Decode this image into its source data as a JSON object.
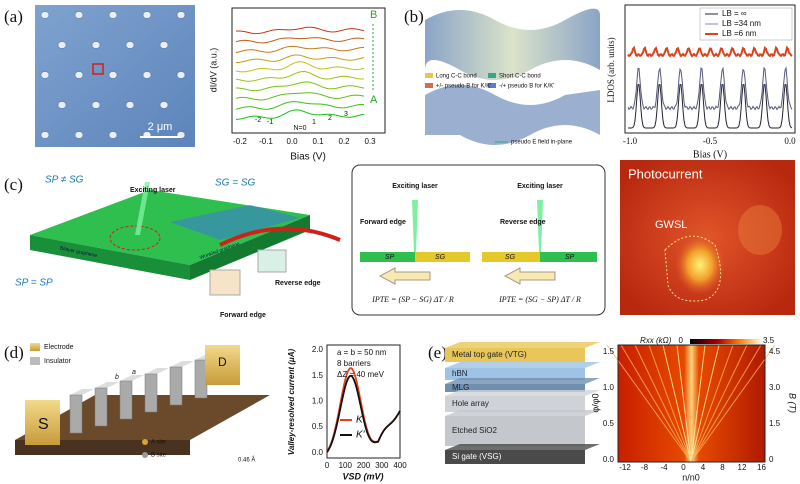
{
  "panels": {
    "a": {
      "label": "(a)",
      "scale_bar": "2 μm",
      "plot": {
        "y_label": "dI/dV (a.u.)",
        "x_label": "Bias (V)",
        "x_ticks": [
          "-0.2",
          "-0.1",
          "0.0",
          "0.1",
          "0.2",
          "0.3"
        ],
        "top_label": "B",
        "bottom_label": "A",
        "peak_labels": [
          "-2",
          "-1",
          "N=0",
          "1",
          "2",
          "3"
        ]
      }
    },
    "b": {
      "label": "(b)",
      "schematic": {
        "legend": [
          "Long C-C bond",
          "Short C-C bond",
          "+/- pseudo B for K/K'",
          "-/+ pseudo B for K/K'"
        ],
        "field_note": "pseudo E field in-plane"
      },
      "plot": {
        "y_label": "LDOS (arb. units)",
        "x_label": "Bias (V)",
        "x_ticks": [
          "-1.0",
          "-0.5",
          "0.0"
        ],
        "legend": [
          "LB = ∞",
          "LB =34 nm",
          "LB =6 nm"
        ]
      }
    },
    "c": {
      "label": "(c)",
      "schematic": {
        "laser": "Exciting laser",
        "unequal": "SP ≠ SG",
        "top_right": "SG = SG",
        "bottom_left": "SP = SP",
        "reverse": "Reverse edge",
        "forward": "Forward edge",
        "sample_left": "Bilayer graphene",
        "sample_right": "Wrinkled graphene"
      },
      "box": {
        "left_laser": "Exciting laser",
        "left_edge": "Forward edge",
        "left_sp": "SP",
        "left_sg": "SG",
        "left_formula": "IPTE = (SP − SG) ΔT / R",
        "right_laser": "Exciting laser",
        "right_edge": "Reverse edge",
        "right_sg": "SG",
        "right_sp": "SP",
        "right_formula": "IPTE = (SG − SP) ΔT / R"
      },
      "image": {
        "title": "Photocurrent",
        "region": "GWSL"
      }
    },
    "d": {
      "label": "(d)",
      "schematic": {
        "electrode": "Electrode",
        "insulator": "Insulator",
        "source": "S",
        "drain": "D",
        "a": "a",
        "b": "b",
        "a_site": "A site",
        "b_site": "B site",
        "height": "0.46 Å"
      },
      "plot": {
        "notes": [
          "a = b = 50 nm",
          "8 barriers",
          "ΔZ = 40 meV"
        ],
        "legend": [
          "K",
          "K'"
        ],
        "y_label": "Valley-resolved current (μA)",
        "y_ticks": [
          "2.0",
          "1.5",
          "1.0",
          "0.5",
          "0.0"
        ],
        "x_label": "VSD (mV)",
        "x_ticks": [
          "0",
          "100",
          "200",
          "300",
          "400"
        ]
      }
    },
    "e": {
      "label": "(e)",
      "layers": [
        "Metal top gate (VTG)",
        "hBN",
        "MLG",
        "Hole array",
        "Etched SiO2",
        "Si gate (VSG)"
      ],
      "map": {
        "colorbar_label": "Rxx (kΩ)",
        "colorbar_ticks": [
          "0",
          "3.5"
        ],
        "y_label": "φ/φ0",
        "y_ticks": [
          "1.5",
          "1.0",
          "0.5",
          "0.0"
        ],
        "y2_label": "B (T)",
        "y2_ticks": [
          "4.5",
          "3.0",
          "1.5",
          "0"
        ],
        "x_label": "n/n0",
        "x_ticks": [
          "-12",
          "-8",
          "-4",
          "0",
          "4",
          "8",
          "12",
          "16"
        ]
      }
    }
  }
}
